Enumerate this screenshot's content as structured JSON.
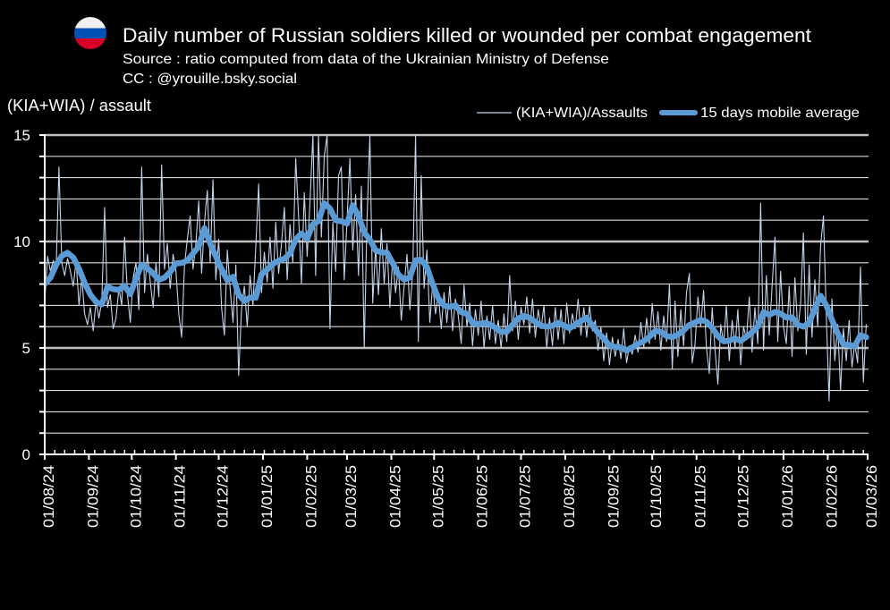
{
  "header": {
    "flag_icon": "russia-flag-icon"
  },
  "colors": {
    "daily_ratio": "#c3d5ec",
    "moving_average": "#5b9bd5",
    "axis_title": "#5b9bd5",
    "flag_white": "#f0f0f0",
    "flag_blue": "#0052b4",
    "flag_red": "#d80027"
  },
  "chart_data": {
    "type": "line",
    "title": "Daily number of Russian soldiers killed or wounded per combat engagement",
    "subtitle": [
      "Source : ratio computed from data of the Ukrainian Ministry of Defense",
      "CC : @yrouille.bsky.social"
    ],
    "xlabel": "",
    "ylabel": "(KIA+WIA) / assault",
    "ylim": [
      0,
      15
    ],
    "y_ticks": [
      0,
      5,
      10,
      15
    ],
    "y_minor_step": 1,
    "grid": true,
    "xlim": [
      "01/08/24",
      "01/03/26"
    ],
    "x_tick_labels": [
      "01/08/24",
      "01/09/24",
      "01/10/24",
      "01/11/24",
      "01/12/24",
      "01/01/25",
      "01/02/25",
      "01/03/25",
      "01/04/25",
      "01/05/25",
      "01/06/25",
      "01/07/25",
      "01/08/25",
      "01/09/25",
      "01/10/25",
      "01/11/25",
      "01/12/25",
      "01/01/26",
      "01/02/26",
      "01/03/26"
    ],
    "x_minor_tick_days": 7,
    "legend_position": "top-right",
    "series": [
      {
        "name": "(KIA+WIA)/Assaults",
        "start": "01/08/24",
        "step_days": 2,
        "values": [
          7.2,
          9.3,
          8.6,
          9.1,
          8.8,
          13.5,
          9.0,
          8.4,
          9.2,
          8.6,
          7.9,
          9.1,
          7.0,
          8.3,
          6.6,
          6.1,
          6.9,
          5.8,
          7.2,
          6.4,
          7.2,
          11.6,
          6.9,
          7.5,
          5.9,
          6.4,
          7.8,
          7.0,
          10.2,
          7.5,
          6.2,
          8.3,
          9.0,
          6.8,
          13.5,
          7.6,
          9.4,
          8.1,
          6.9,
          9.0,
          7.4,
          13.6,
          8.7,
          9.9,
          7.8,
          9.4,
          8.6,
          6.6,
          5.5,
          8.9,
          10.1,
          11.2,
          8.7,
          9.9,
          11.9,
          8.5,
          10.9,
          12.4,
          9.0,
          12.9,
          8.2,
          10.1,
          6.9,
          5.6,
          9.6,
          7.8,
          6.2,
          8.9,
          3.7,
          6.8,
          7.9,
          6.0,
          8.4,
          7.0,
          9.8,
          12.7,
          7.6,
          9.5,
          8.1,
          10.2,
          7.8,
          10.9,
          8.5,
          9.9,
          11.6,
          8.2,
          10.8,
          9.0,
          13.9,
          11.2,
          8.0,
          12.3,
          9.3,
          11.9,
          15.0,
          8.4,
          15.0,
          10.2,
          14.0,
          15.0,
          5.9,
          10.9,
          8.6,
          13.1,
          13.5,
          8.2,
          11.0,
          13.9,
          9.6,
          12.2,
          8.4,
          12.6,
          5.0,
          11.0,
          15.0,
          7.1,
          9.7,
          7.5,
          10.6,
          8.0,
          9.9,
          6.9,
          9.2,
          7.6,
          8.8,
          6.3,
          7.9,
          9.4,
          6.8,
          8.5,
          15.0,
          5.3,
          13.1,
          7.8,
          9.6,
          6.2,
          8.0,
          6.6,
          7.5,
          5.9,
          7.6,
          6.2,
          7.9,
          5.8,
          7.3,
          6.5,
          5.2,
          7.95,
          6.0,
          7.1,
          5.1,
          6.8,
          5.6,
          7.2,
          5.0,
          6.5,
          5.4,
          7.0,
          5.2,
          6.3,
          5.0,
          6.6,
          5.3,
          8.4,
          5.8,
          7.2,
          5.4,
          6.9,
          6.1,
          7.4,
          5.7,
          7.3,
          5.5,
          6.8,
          5.9,
          7.0,
          5.0,
          6.4,
          5.1,
          6.9,
          5.4,
          6.8,
          5.2,
          7.1,
          5.7,
          6.6,
          5.9,
          7.3,
          5.6,
          6.9,
          5.5,
          7.0,
          5.8,
          6.3,
          4.9,
          6.0,
          4.4,
          5.7,
          4.2,
          5.5,
          4.6,
          5.4,
          4.5,
          5.9,
          4.3,
          5.1,
          4.7,
          5.6,
          4.8,
          6.2,
          5.0,
          6.4,
          5.2,
          7.1,
          5.4,
          6.7,
          4.9,
          6.5,
          5.3,
          8.0,
          4.0,
          7.2,
          4.6,
          6.8,
          5.1,
          7.6,
          8.5,
          4.3,
          5.2,
          7.4,
          6.0,
          7.7,
          5.0,
          3.8,
          6.9,
          4.9,
          3.3,
          6.1,
          5.2,
          7.0,
          4.4,
          6.3,
          5.0,
          6.8,
          4.2,
          6.0,
          5.4,
          7.4,
          4.8,
          6.9,
          5.2,
          11.8,
          4.9,
          8.4,
          5.6,
          7.9,
          10.2,
          5.3,
          8.6,
          6.0,
          5.2,
          7.9,
          4.6,
          8.3,
          5.8,
          7.1,
          10.4,
          4.7,
          8.9,
          5.5,
          8.2,
          6.0,
          9.8,
          11.2,
          6.5,
          2.5,
          7.3,
          4.4,
          6.1,
          3.0,
          5.9,
          4.4,
          6.3,
          4.1,
          5.2,
          4.3,
          8.8,
          3.4,
          6.1
        ]
      },
      {
        "name": "15 days mobile average",
        "start": "01/08/24",
        "step_days": 4,
        "values": [
          8.0,
          8.3,
          8.9,
          9.32,
          9.47,
          9.25,
          8.72,
          8.06,
          7.51,
          7.16,
          7.04,
          7.88,
          7.76,
          7.73,
          7.92,
          7.53,
          8.25,
          8.91,
          8.74,
          8.5,
          8.2,
          8.3,
          8.57,
          8.97,
          8.99,
          9.1,
          9.44,
          9.76,
          10.63,
          9.9,
          9.3,
          8.7,
          8.18,
          8.34,
          7.5,
          7.2,
          7.37,
          7.36,
          8.46,
          8.68,
          8.95,
          9.1,
          9.19,
          9.44,
          10.1,
          10.38,
          10.13,
          10.81,
          10.96,
          11.8,
          11.55,
          11.0,
          10.95,
          10.84,
          11.7,
          11.2,
          10.42,
          10.09,
          9.58,
          9.49,
          9.47,
          8.99,
          8.45,
          8.21,
          8.31,
          9.12,
          9.14,
          8.8,
          8.0,
          7.32,
          6.99,
          6.93,
          7.0,
          6.68,
          6.6,
          6.17,
          6.11,
          6.18,
          6.11,
          5.95,
          5.75,
          5.76,
          6.09,
          6.39,
          6.5,
          6.42,
          6.22,
          6.05,
          6.0,
          6.04,
          6.18,
          6.06,
          5.92,
          6.1,
          6.27,
          6.43,
          6.05,
          5.71,
          5.45,
          5.11,
          5.05,
          5.02,
          4.88,
          5.03,
          5.19,
          5.32,
          5.52,
          5.8,
          5.76,
          5.56,
          5.51,
          5.62,
          5.83,
          6.08,
          6.2,
          6.32,
          6.23,
          5.95,
          5.55,
          5.31,
          5.34,
          5.44,
          5.33,
          5.52,
          5.74,
          6.01,
          6.68,
          6.55,
          6.69,
          6.61,
          6.43,
          6.44,
          6.09,
          6.0,
          6.19,
          6.84,
          7.45,
          7.0,
          6.32,
          5.69,
          5.17,
          5.14,
          5.08,
          5.6,
          5.5
        ]
      }
    ]
  }
}
